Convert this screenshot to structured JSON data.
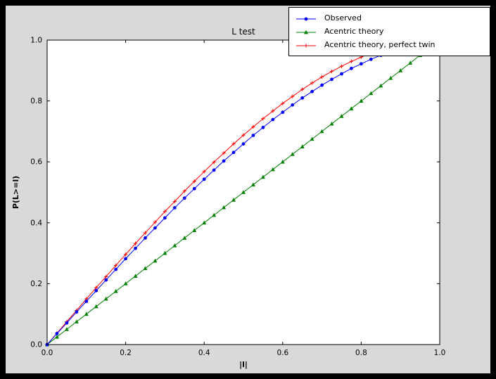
{
  "window": {
    "outer_bg": "#000000",
    "figure_bg": "#d9d9d9",
    "plot_bg": "#ffffff",
    "frame_color": "#000000"
  },
  "chart_data": {
    "type": "line",
    "title": "L test",
    "xlabel": "|l|",
    "ylabel": "P(L>=l)",
    "xlim": [
      0,
      1
    ],
    "ylim": [
      0,
      1
    ],
    "grid": false,
    "legend_position": "upper right",
    "xticks": [
      0,
      0.2,
      0.4,
      0.6,
      0.8,
      1.0
    ],
    "xtick_labels": [
      "0.0",
      "0.2",
      "0.4",
      "0.6",
      "0.8",
      "1.0"
    ],
    "yticks": [
      0,
      0.2,
      0.4,
      0.6,
      0.8,
      1.0
    ],
    "ytick_labels": [
      "0.0",
      "0.2",
      "0.4",
      "0.6",
      "0.8",
      "1.0"
    ],
    "series": [
      {
        "name": "Observed",
        "color": "#0000ff",
        "marker": "circle",
        "x": [
          0,
          0.025,
          0.05,
          0.075,
          0.1,
          0.125,
          0.15,
          0.175,
          0.2,
          0.225,
          0.25,
          0.275,
          0.3,
          0.325,
          0.35,
          0.375,
          0.4,
          0.425,
          0.45,
          0.475,
          0.5,
          0.525,
          0.55,
          0.575,
          0.6,
          0.625,
          0.65,
          0.675,
          0.7,
          0.725,
          0.75,
          0.775,
          0.8,
          0.825,
          0.85
        ],
        "y": [
          0,
          0.036,
          0.071,
          0.107,
          0.142,
          0.177,
          0.212,
          0.247,
          0.282,
          0.316,
          0.35,
          0.383,
          0.416,
          0.449,
          0.481,
          0.512,
          0.543,
          0.573,
          0.603,
          0.631,
          0.659,
          0.687,
          0.713,
          0.739,
          0.763,
          0.787,
          0.81,
          0.831,
          0.852,
          0.871,
          0.889,
          0.907,
          0.922,
          0.937,
          0.95
        ]
      },
      {
        "name": "Acentric theory",
        "color": "#008000",
        "marker": "triangle",
        "x": [
          0,
          0.025,
          0.05,
          0.075,
          0.1,
          0.125,
          0.15,
          0.175,
          0.2,
          0.225,
          0.25,
          0.275,
          0.3,
          0.325,
          0.35,
          0.375,
          0.4,
          0.425,
          0.45,
          0.475,
          0.5,
          0.525,
          0.55,
          0.575,
          0.6,
          0.625,
          0.65,
          0.675,
          0.7,
          0.725,
          0.75,
          0.775,
          0.8,
          0.825,
          0.85,
          0.875,
          0.9,
          0.925,
          0.95,
          0.975
        ],
        "y": [
          0,
          0.025,
          0.05,
          0.075,
          0.1,
          0.125,
          0.15,
          0.175,
          0.2,
          0.225,
          0.25,
          0.275,
          0.3,
          0.325,
          0.35,
          0.375,
          0.4,
          0.425,
          0.45,
          0.475,
          0.5,
          0.525,
          0.55,
          0.575,
          0.6,
          0.625,
          0.65,
          0.675,
          0.7,
          0.725,
          0.75,
          0.775,
          0.8,
          0.825,
          0.85,
          0.875,
          0.9,
          0.925,
          0.95,
          0.975
        ]
      },
      {
        "name": "Acentric theory, perfect twin",
        "color": "#ff0000",
        "marker": "plus",
        "x": [
          0,
          0.025,
          0.05,
          0.075,
          0.1,
          0.125,
          0.15,
          0.175,
          0.2,
          0.225,
          0.25,
          0.275,
          0.3,
          0.325,
          0.35,
          0.375,
          0.4,
          0.425,
          0.45,
          0.475,
          0.5,
          0.525,
          0.55,
          0.575,
          0.6,
          0.625,
          0.65,
          0.675,
          0.7,
          0.725,
          0.75,
          0.775,
          0.8,
          0.825
        ],
        "y": [
          0,
          0.037,
          0.075,
          0.112,
          0.15,
          0.187,
          0.223,
          0.26,
          0.296,
          0.332,
          0.367,
          0.402,
          0.437,
          0.47,
          0.504,
          0.536,
          0.568,
          0.599,
          0.629,
          0.659,
          0.688,
          0.715,
          0.742,
          0.767,
          0.792,
          0.815,
          0.838,
          0.859,
          0.879,
          0.897,
          0.914,
          0.93,
          0.944,
          0.957
        ]
      }
    ]
  }
}
